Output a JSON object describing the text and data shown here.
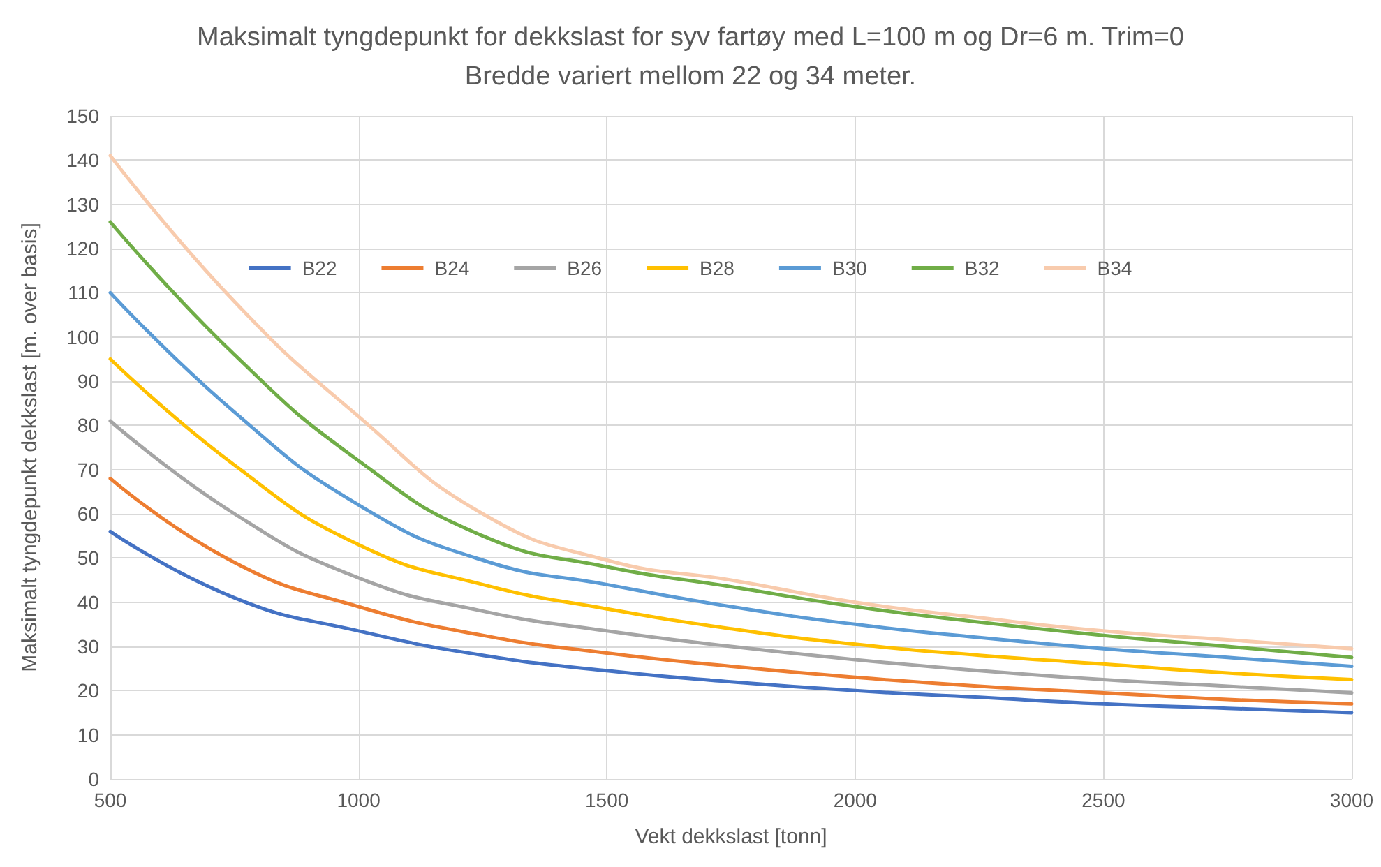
{
  "chart_data": {
    "type": "line",
    "title": "Maksimalt tyngdepunkt for dekkslast for syv fartøy med L=100 m og Dr=6 m. Trim=0\nBredde variert mellom 22 og 34 meter.",
    "xlabel": "Vekt dekkslast [tonn]",
    "ylabel": "Maksimalt tyngdepunkt dekkslast [m. over basis]",
    "x": [
      500,
      750,
      1000,
      1250,
      1500,
      1750,
      2000,
      2250,
      2500,
      2750,
      3000
    ],
    "series": [
      {
        "name": "B22",
        "color": "#4472c4",
        "values": [
          56,
          41,
          33.5,
          28,
          24.5,
          22,
          20,
          18.5,
          17,
          16,
          15
        ]
      },
      {
        "name": "B24",
        "color": "#ed7d31",
        "values": [
          68,
          49,
          39,
          32.5,
          28.5,
          25.5,
          23,
          21,
          19.5,
          18,
          17
        ]
      },
      {
        "name": "B26",
        "color": "#a5a5a5",
        "values": [
          81,
          60,
          45.5,
          38,
          33.5,
          30,
          27,
          24.5,
          22.5,
          21,
          19.5
        ]
      },
      {
        "name": "B28",
        "color": "#ffc000",
        "values": [
          95,
          71,
          53,
          44,
          38.5,
          34,
          30.5,
          28,
          26,
          24,
          22.5
        ]
      },
      {
        "name": "B30",
        "color": "#5b9bd5",
        "values": [
          110,
          83,
          62,
          49.5,
          44,
          39,
          35,
          32,
          29.5,
          27.5,
          25.5
        ]
      },
      {
        "name": "B32",
        "color": "#70ad47",
        "values": [
          126,
          96,
          72,
          55,
          48,
          43.5,
          39,
          35.5,
          32.5,
          30,
          27.5
        ]
      },
      {
        "name": "B34",
        "color": "#f8cbad",
        "values": [
          141,
          108,
          82,
          60,
          49.5,
          45,
          40,
          36.5,
          33.5,
          31.5,
          29.5
        ]
      }
    ],
    "xlim": [
      500,
      3000
    ],
    "xticks": [
      500,
      1000,
      1500,
      2000,
      2500,
      3000
    ],
    "ylim": [
      0,
      150
    ],
    "yticks": [
      0,
      10,
      20,
      30,
      40,
      50,
      60,
      70,
      80,
      90,
      100,
      110,
      120,
      130,
      140,
      150
    ],
    "grid": true,
    "legend": "top",
    "marker": "none",
    "line_style": "solid"
  }
}
